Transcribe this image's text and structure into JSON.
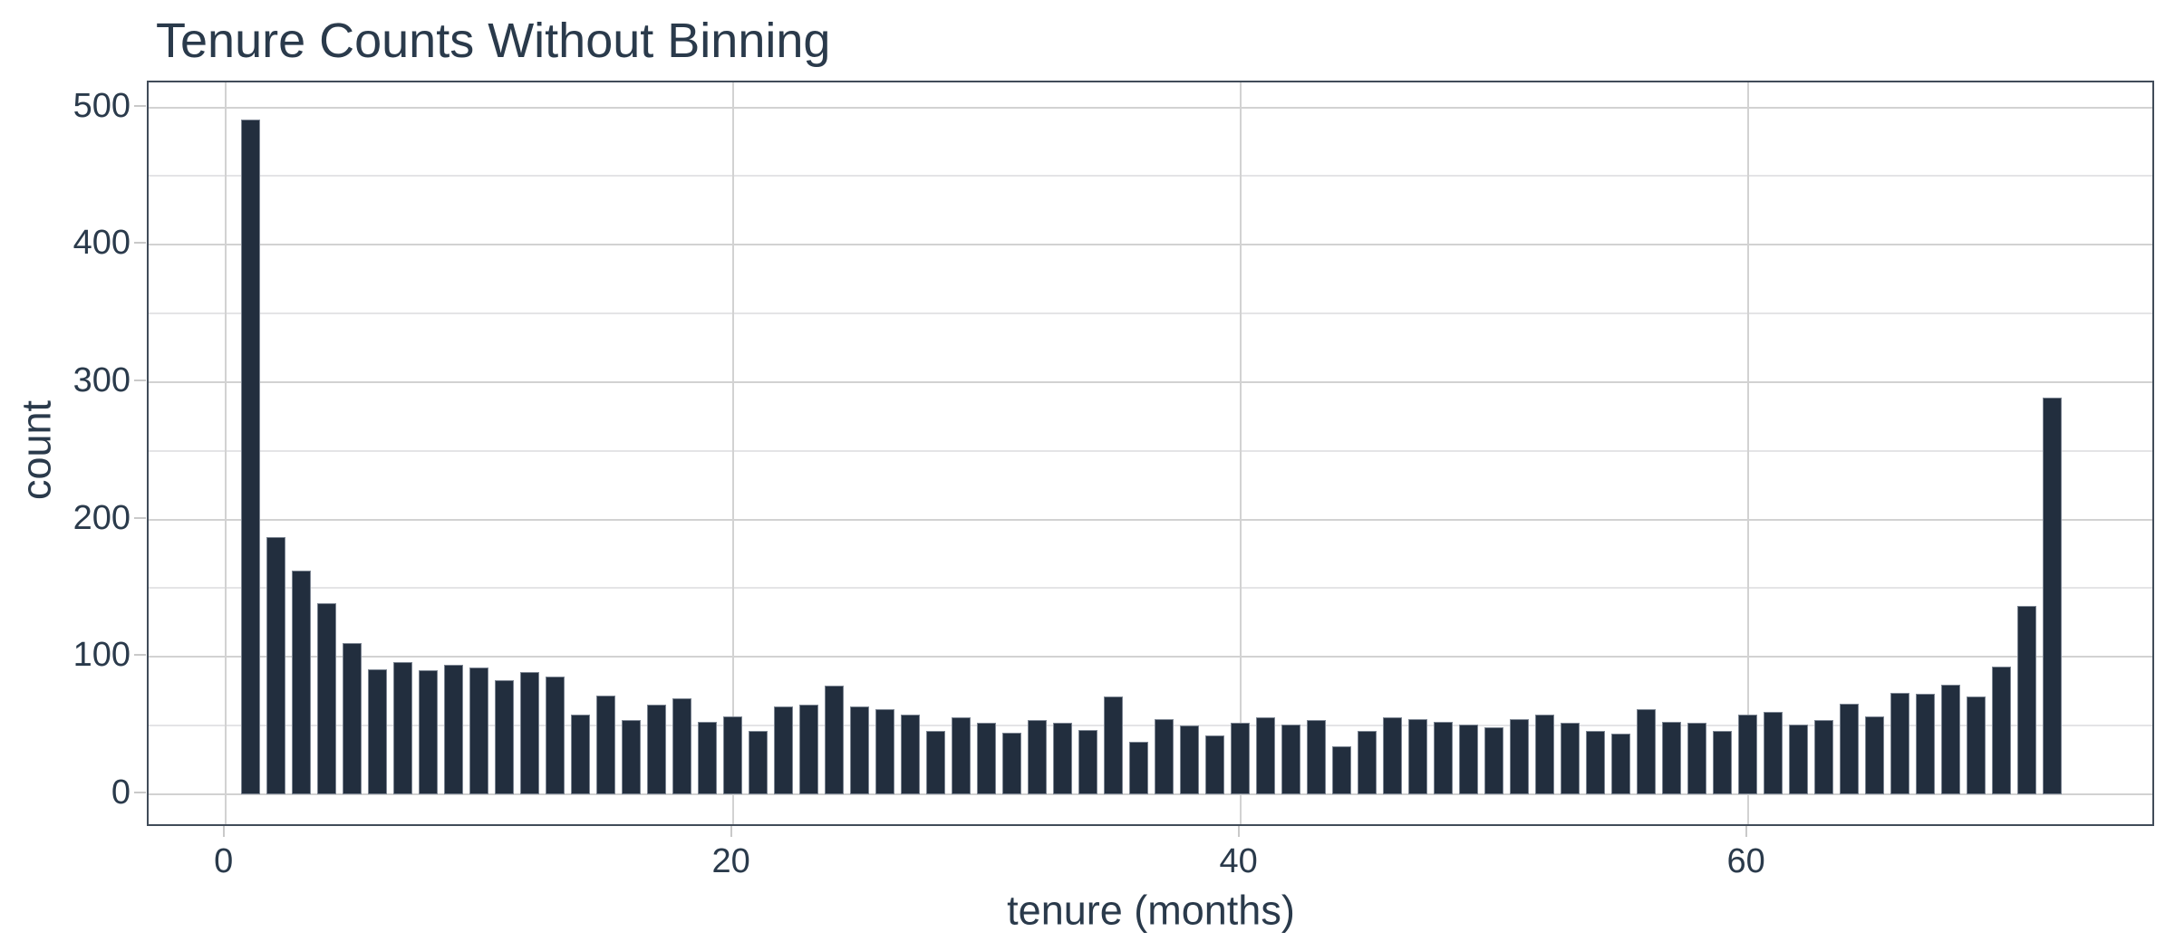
{
  "title": "Tenure Counts Without Binning",
  "chart_data": {
    "type": "bar",
    "title": "Tenure Counts Without Binning",
    "xlabel": "tenure (months)",
    "ylabel": "count",
    "x": [
      1,
      2,
      3,
      4,
      5,
      6,
      7,
      8,
      9,
      10,
      11,
      12,
      13,
      14,
      15,
      16,
      17,
      18,
      19,
      20,
      21,
      22,
      23,
      24,
      25,
      26,
      27,
      28,
      29,
      30,
      31,
      32,
      33,
      34,
      35,
      36,
      37,
      38,
      39,
      40,
      41,
      42,
      43,
      44,
      45,
      46,
      47,
      48,
      49,
      50,
      51,
      52,
      53,
      54,
      55,
      56,
      57,
      58,
      59,
      60,
      61,
      62,
      63,
      64,
      65,
      66,
      67,
      68,
      69,
      70,
      71,
      72
    ],
    "values": [
      491,
      187,
      163,
      139,
      110,
      91,
      96,
      90,
      94,
      92,
      83,
      89,
      86,
      58,
      72,
      54,
      65,
      70,
      53,
      57,
      46,
      64,
      65,
      79,
      64,
      62,
      58,
      46,
      56,
      52,
      45,
      54,
      52,
      47,
      71,
      38,
      55,
      50,
      43,
      52,
      56,
      51,
      54,
      35,
      46,
      56,
      55,
      53,
      51,
      49,
      55,
      58,
      52,
      46,
      44,
      62,
      53,
      52,
      46,
      58,
      60,
      51,
      54,
      66,
      57,
      74,
      73,
      80,
      71,
      93,
      137,
      289
    ],
    "x_ticks": [
      0,
      20,
      40,
      60
    ],
    "y_ticks": [
      0,
      100,
      200,
      300,
      400,
      500
    ],
    "y_minor_ticks": [
      50,
      150,
      250,
      350,
      450
    ],
    "xlim": [
      -3,
      76
    ],
    "ylim": [
      -24,
      518
    ],
    "grid": "on",
    "legend": "none",
    "bar_color": "#222e3e",
    "text_color": "#2a3a4b",
    "major_grid_color": "#d2d2d2",
    "minor_grid_color": "#e4e4e6",
    "spine_color": "#414c59"
  }
}
